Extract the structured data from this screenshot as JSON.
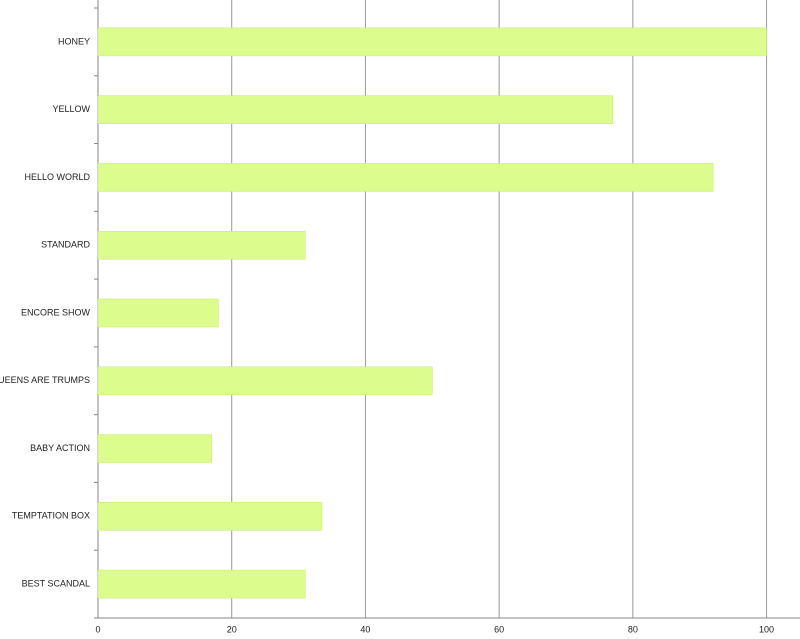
{
  "chart_data": {
    "type": "hbar",
    "categories": [
      "HONEY",
      "YELLOW",
      "HELLO WORLD",
      "STANDARD",
      "ENCORE SHOW",
      "QUEENS ARE TRUMPS",
      "BABY ACTION",
      "TEMPTATION BOX",
      "BEST SCANDAL"
    ],
    "values": [
      100,
      77,
      92,
      31,
      18,
      50,
      17,
      33.5,
      31
    ],
    "color": "#dcfd8e",
    "xlim": [
      0,
      105
    ],
    "xticks": [
      0,
      20,
      40,
      60,
      80,
      100
    ],
    "grid": true
  }
}
